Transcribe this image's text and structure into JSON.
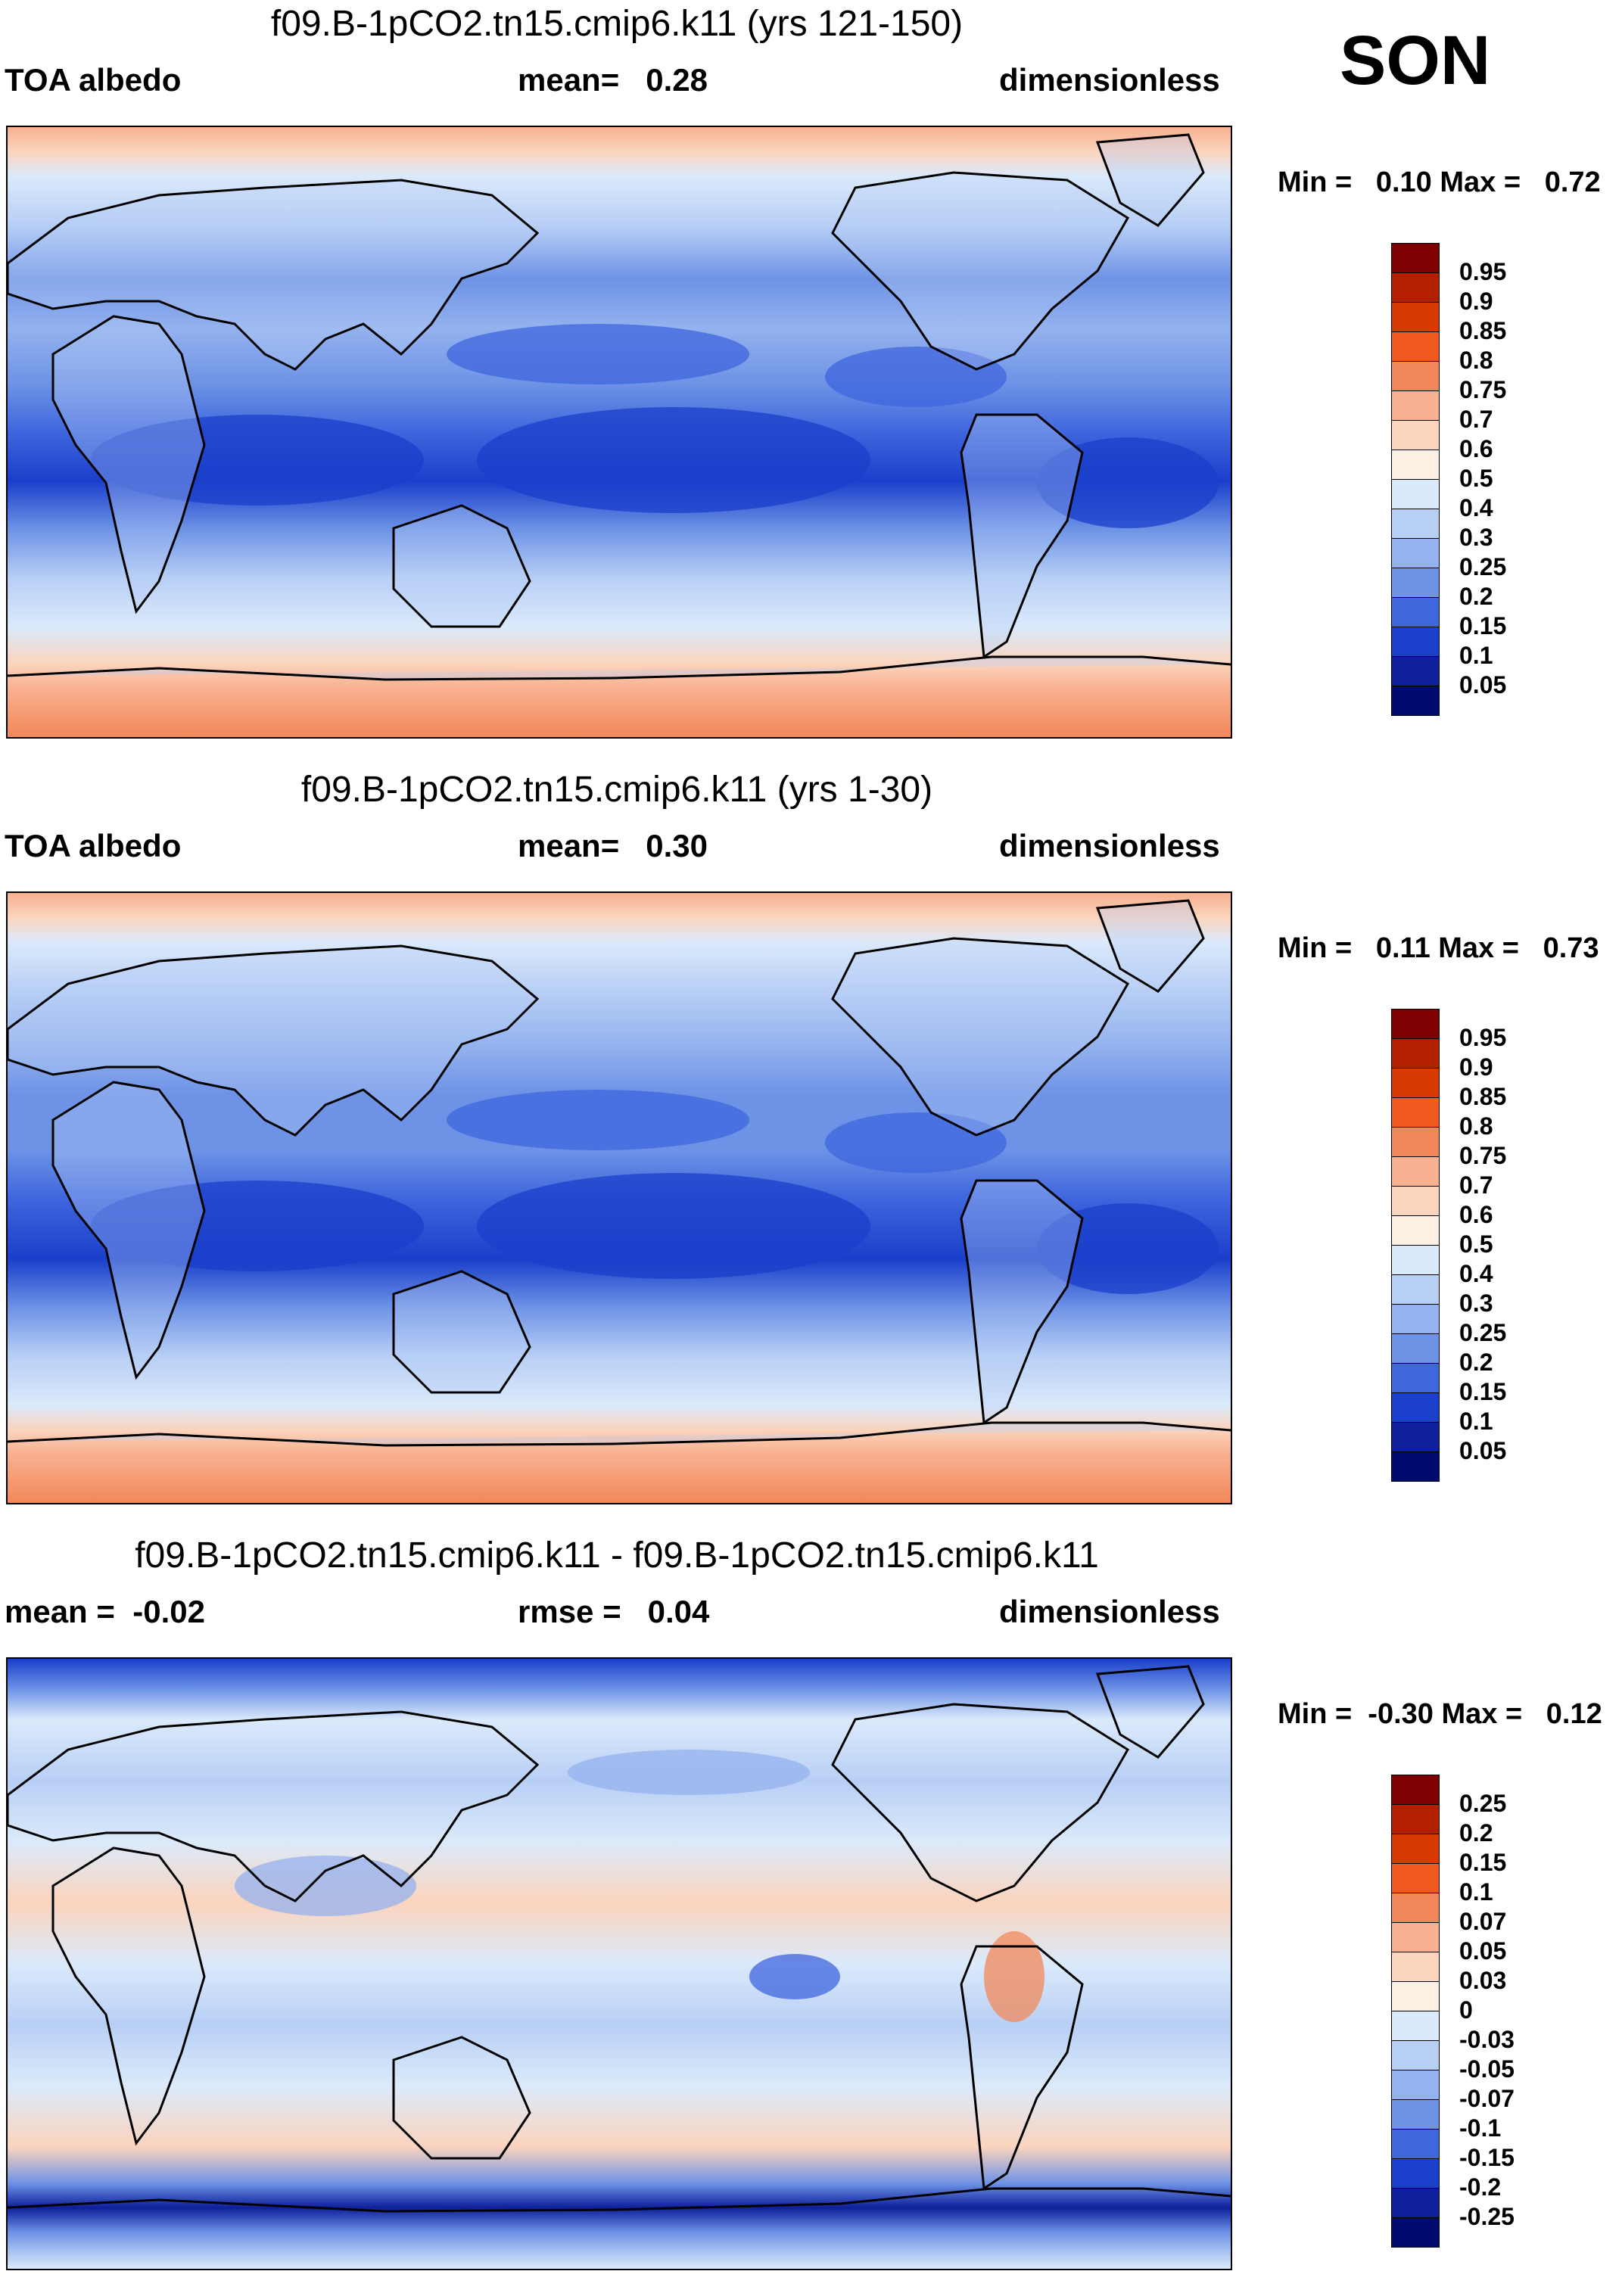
{
  "season": "SON",
  "colors": {
    "land_outline": "#000000"
  },
  "panels": [
    {
      "title": "f09.B-1pCO2.tn15.cmip6.k11 (yrs 121-150)",
      "left_label": "TOA albedo",
      "center_label": "mean=   0.28",
      "right_label": "dimensionless",
      "minmax": "Min =   0.10 Max =   0.72",
      "colorbar": {
        "labels": [
          "0.95",
          "0.9",
          "0.85",
          "0.8",
          "0.75",
          "0.7",
          "0.6",
          "0.5",
          "0.4",
          "0.3",
          "0.25",
          "0.2",
          "0.15",
          "0.1",
          "0.05"
        ],
        "colors": [
          "#7f0000",
          "#b22000",
          "#d63a00",
          "#f05a20",
          "#f2885a",
          "#f8b090",
          "#fbd4bd",
          "#fdf0e4",
          "#dbeafb",
          "#b8cff5",
          "#94b2ee",
          "#6e93e6",
          "#3f66dd",
          "#1a3fcb",
          "#0d1f9a",
          "#000a6e"
        ]
      }
    },
    {
      "title": "f09.B-1pCO2.tn15.cmip6.k11 (yrs 1-30)",
      "left_label": "TOA albedo",
      "center_label": "mean=   0.30",
      "right_label": "dimensionless",
      "minmax": "Min =   0.11 Max =   0.73",
      "colorbar": {
        "labels": [
          "0.95",
          "0.9",
          "0.85",
          "0.8",
          "0.75",
          "0.7",
          "0.6",
          "0.5",
          "0.4",
          "0.3",
          "0.25",
          "0.2",
          "0.15",
          "0.1",
          "0.05"
        ],
        "colors": [
          "#7f0000",
          "#b22000",
          "#d63a00",
          "#f05a20",
          "#f2885a",
          "#f8b090",
          "#fbd4bd",
          "#fdf0e4",
          "#dbeafb",
          "#b8cff5",
          "#94b2ee",
          "#6e93e6",
          "#3f66dd",
          "#1a3fcb",
          "#0d1f9a",
          "#000a6e"
        ]
      }
    },
    {
      "title": "f09.B-1pCO2.tn15.cmip6.k11 - f09.B-1pCO2.tn15.cmip6.k11",
      "left_label": "mean =  -0.02",
      "center_label": "rmse =   0.04",
      "right_label": "dimensionless",
      "minmax": "Min =  -0.30 Max =   0.12",
      "colorbar": {
        "labels": [
          "0.25",
          "0.2",
          "0.15",
          "0.1",
          "0.07",
          "0.05",
          "0.03",
          "0",
          "-0.03",
          "-0.05",
          "-0.07",
          "-0.1",
          "-0.15",
          "-0.2",
          "-0.25"
        ],
        "colors": [
          "#7f0000",
          "#b22000",
          "#d63a00",
          "#f05a20",
          "#f2885a",
          "#f8b090",
          "#fbd4bd",
          "#fdf0e4",
          "#dbeafb",
          "#b8cff5",
          "#94b2ee",
          "#6e93e6",
          "#3f66dd",
          "#1a3fcb",
          "#0d1f9a",
          "#000a6e"
        ]
      }
    }
  ]
}
